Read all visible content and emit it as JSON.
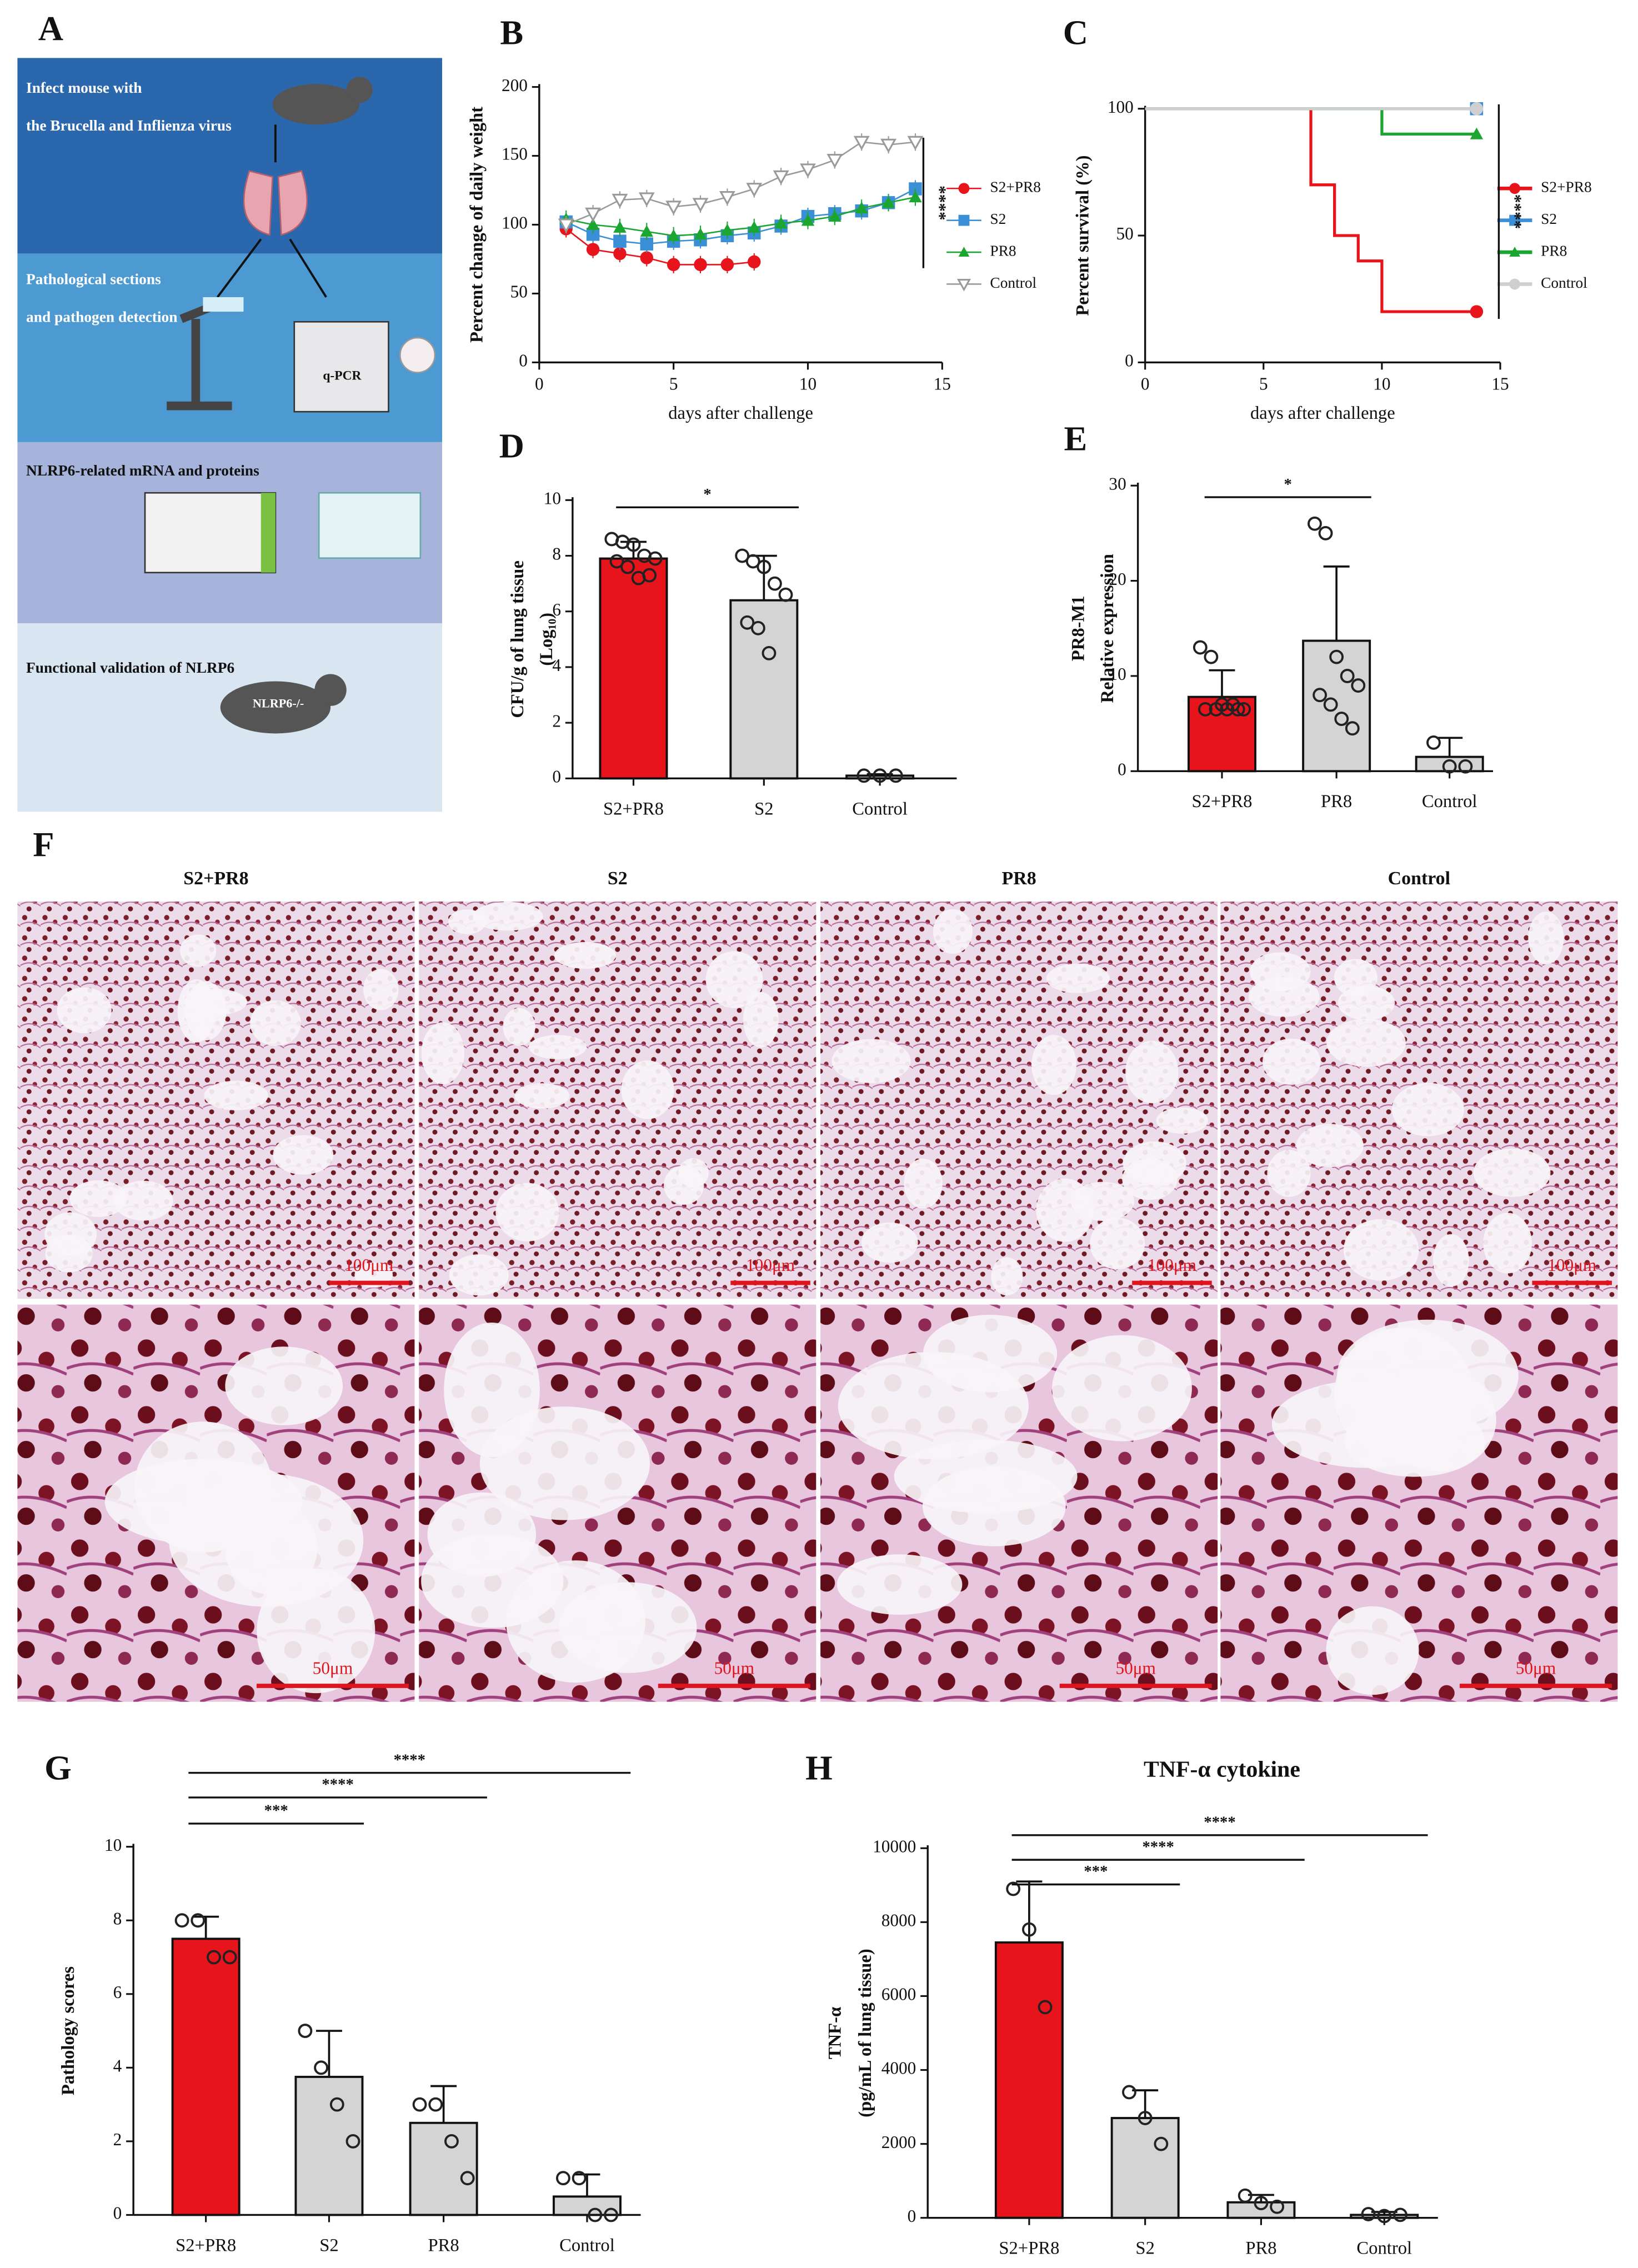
{
  "letters": [
    "A",
    "B",
    "C",
    "D",
    "E",
    "F",
    "G",
    "H"
  ],
  "workflow": {
    "steps": [
      {
        "lines": [
          "Infect mouse with",
          "the Brucella and Inflienza virus"
        ]
      },
      {
        "lines": [
          "Pathological sections",
          "and pathogen detection"
        ],
        "device": "q-PCR"
      },
      {
        "lines": [
          "NLRP6-related mRNA and proteins"
        ]
      },
      {
        "lines": [
          "Functional validation of NLRP6"
        ],
        "mouse": "NLRP6-/-"
      }
    ]
  },
  "histology": {
    "groups": [
      "S2+PR8",
      "S2",
      "PR8",
      "Control"
    ],
    "scale_bars": [
      [
        "100μm",
        "100μm",
        "100μm",
        "100μm"
      ],
      [
        "50μm",
        "50μm",
        "50μm",
        "50μm"
      ]
    ]
  },
  "chart_data": [
    {
      "type": "line",
      "xlabel": "days after challenge",
      "ylabel": "Percent change of daily weight",
      "x": [
        1,
        2,
        3,
        4,
        5,
        6,
        7,
        8,
        9,
        10,
        11,
        12,
        13,
        14
      ],
      "xlim": [
        0,
        15
      ],
      "xticks": [
        0,
        5,
        10,
        15
      ],
      "ylim": [
        0,
        200
      ],
      "yticks": [
        0,
        50,
        100,
        150,
        200
      ],
      "annotation": "****",
      "series": [
        {
          "name": "S2+PR8",
          "color": "#e8141c",
          "marker": "circle",
          "values": [
            97,
            82,
            79,
            76,
            71,
            71,
            71,
            73,
            null,
            null,
            null,
            null,
            null,
            null
          ]
        },
        {
          "name": "S2",
          "color": "#3a8fd6",
          "marker": "square",
          "values": [
            102,
            93,
            88,
            86,
            88,
            89,
            92,
            94,
            99,
            106,
            108,
            110,
            116,
            126
          ]
        },
        {
          "name": "PR8",
          "color": "#1aa631",
          "marker": "triangle",
          "values": [
            104,
            100,
            98,
            95,
            92,
            93,
            96,
            98,
            101,
            103,
            106,
            112,
            116,
            120
          ]
        },
        {
          "name": "Control",
          "color": "#9a9a9a",
          "marker": "triangle-down",
          "values": [
            100,
            108,
            118,
            119,
            113,
            115,
            120,
            126,
            135,
            140,
            147,
            160,
            158,
            160
          ]
        }
      ]
    },
    {
      "type": "step",
      "xlabel": "days after challenge",
      "ylabel": "Percent survival (%)",
      "xlim": [
        0,
        15
      ],
      "xticks": [
        0,
        5,
        10,
        15
      ],
      "ylim": [
        0,
        100
      ],
      "yticks": [
        0,
        50,
        100
      ],
      "annotation": "****",
      "series": [
        {
          "name": "S2+PR8",
          "color": "#e8141c",
          "marker": "circle",
          "x": [
            0,
            7,
            8,
            9,
            10,
            14
          ],
          "values": [
            100,
            70,
            50,
            40,
            20,
            20
          ]
        },
        {
          "name": "S2",
          "color": "#3a8fd6",
          "marker": "square",
          "x": [
            0,
            14
          ],
          "values": [
            100,
            100
          ]
        },
        {
          "name": "PR8",
          "color": "#1aa631",
          "marker": "triangle",
          "x": [
            0,
            10,
            14
          ],
          "values": [
            100,
            90,
            90
          ]
        },
        {
          "name": "Control",
          "color": "#cfcfcf",
          "marker": "circle",
          "x": [
            0,
            14
          ],
          "values": [
            100,
            100
          ]
        }
      ]
    },
    {
      "type": "bar",
      "ylabel": [
        "CFU/g of lung tissue",
        "(Log₁₀)"
      ],
      "categories": [
        "S2+PR8",
        "S2",
        "Control"
      ],
      "values": [
        7.9,
        6.4,
        0.1
      ],
      "errors": [
        0.6,
        1.6,
        0.05
      ],
      "colors": [
        "#e8141c",
        "#d4d4d4",
        "#d4d4d4"
      ],
      "points": [
        [
          8.6,
          8.5,
          8.4,
          8.0,
          7.9,
          7.8,
          7.6,
          7.2,
          7.3
        ],
        [
          8.0,
          7.8,
          7.6,
          7.0,
          6.6,
          5.6,
          5.4,
          4.5
        ],
        [
          0.1,
          0.1,
          0.1
        ]
      ],
      "ylim": [
        0,
        10
      ],
      "yticks": [
        0,
        2,
        4,
        6,
        8,
        10
      ],
      "brackets": [
        {
          "label": "*",
          "groups": [
            "S2+PR8",
            "S2"
          ]
        }
      ]
    },
    {
      "type": "bar",
      "ylabel": [
        "PR8-M1",
        "Relative expression"
      ],
      "categories": [
        "S2+PR8",
        "PR8",
        "Control"
      ],
      "values": [
        7.8,
        13.7,
        1.5
      ],
      "errors": [
        2.8,
        7.8,
        2.0
      ],
      "colors": [
        "#e8141c",
        "#d4d4d4",
        "#d4d4d4"
      ],
      "points": [
        [
          13,
          12,
          7,
          7,
          6.5,
          6.5,
          6.5,
          6.5,
          6.5
        ],
        [
          26,
          25,
          12,
          10,
          9,
          8,
          7,
          5.5,
          4.5
        ],
        [
          3,
          0.5,
          0.5
        ]
      ],
      "ylim": [
        0,
        30
      ],
      "yticks": [
        0,
        10,
        20,
        30
      ],
      "brackets": [
        {
          "label": "*",
          "groups": [
            "S2+PR8",
            "PR8"
          ]
        }
      ]
    },
    {
      "type": "bar",
      "ylabel": [
        "Pathology scores"
      ],
      "categories": [
        "S2+PR8",
        "S2",
        "PR8",
        "Control"
      ],
      "values": [
        7.5,
        3.75,
        2.5,
        0.5
      ],
      "errors": [
        0.6,
        1.25,
        1.0,
        0.6
      ],
      "colors": [
        "#e8141c",
        "#d4d4d4",
        "#d4d4d4",
        "#d4d4d4"
      ],
      "points": [
        [
          8,
          8,
          7,
          7
        ],
        [
          5,
          4,
          3,
          2
        ],
        [
          3,
          3,
          2,
          1
        ],
        [
          1,
          1,
          0,
          0
        ]
      ],
      "ylim": [
        0,
        10
      ],
      "yticks": [
        0,
        2,
        4,
        6,
        8,
        10
      ],
      "brackets": [
        {
          "label": "***",
          "groups": [
            "S2+PR8",
            "S2"
          ]
        },
        {
          "label": "****",
          "groups": [
            "S2+PR8",
            "PR8"
          ]
        },
        {
          "label": "****",
          "groups": [
            "S2+PR8",
            "Control"
          ]
        }
      ]
    },
    {
      "type": "bar",
      "title": "TNF-α cytokine",
      "ylabel": [
        "TNF-α",
        "(pg/mL of lung tissue)"
      ],
      "categories": [
        "S2+PR8",
        "S2",
        "PR8",
        "Control"
      ],
      "values": [
        7450,
        2700,
        420,
        80
      ],
      "errors": [
        1650,
        750,
        200,
        80
      ],
      "colors": [
        "#e8141c",
        "#d4d4d4",
        "#d4d4d4",
        "#d4d4d4"
      ],
      "points": [
        [
          8900,
          7800,
          5700
        ],
        [
          3400,
          2700,
          2000
        ],
        [
          600,
          400,
          300
        ],
        [
          100,
          50,
          80
        ]
      ],
      "ylim": [
        0,
        10000
      ],
      "yticks": [
        0,
        2000,
        4000,
        6000,
        8000,
        10000
      ],
      "brackets": [
        {
          "label": "***",
          "groups": [
            "S2+PR8",
            "S2"
          ]
        },
        {
          "label": "****",
          "groups": [
            "S2+PR8",
            "PR8"
          ]
        },
        {
          "label": "****",
          "groups": [
            "S2+PR8",
            "Control"
          ]
        }
      ]
    }
  ]
}
